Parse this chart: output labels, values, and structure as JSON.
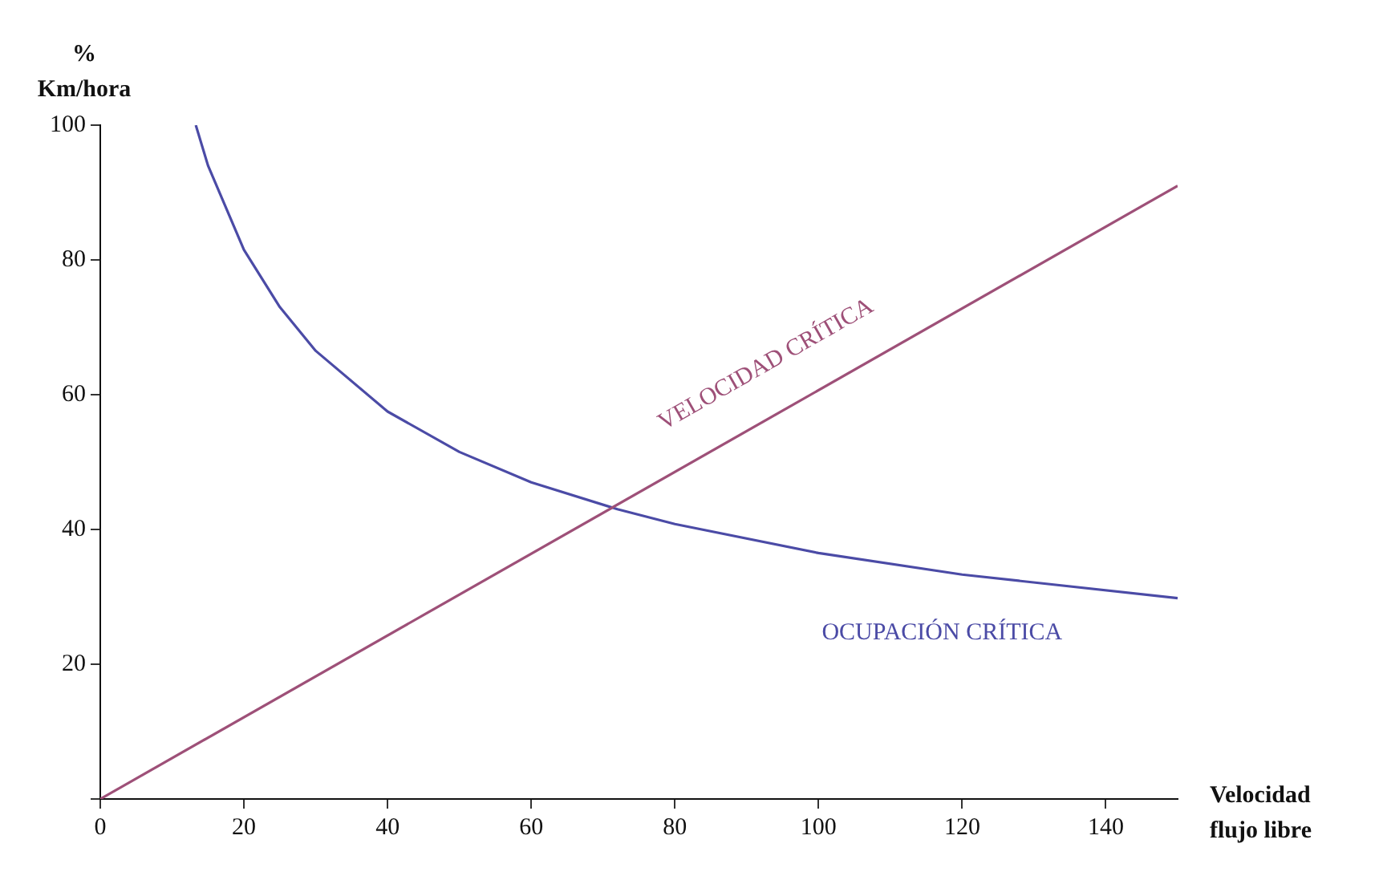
{
  "chart_data": {
    "type": "line",
    "ylabel": "%\nKm/hora",
    "xlabel": "Velocidad\nflujo libre",
    "series": [
      {
        "name": "VELOCIDAD CRÍTICA",
        "color": "#9e5078",
        "x": [
          0,
          150
        ],
        "values": [
          0,
          91
        ]
      },
      {
        "name": "OCUPACIÓN CRÍTICA",
        "color": "#4b4ba6",
        "x": [
          13.3,
          15,
          20,
          25,
          30,
          40,
          50,
          60,
          72,
          80,
          100,
          120,
          150
        ],
        "values": [
          100,
          94,
          81.5,
          73,
          66.5,
          57.5,
          51.5,
          47,
          43,
          40.8,
          36.5,
          33.3,
          29.8
        ]
      }
    ],
    "xlim": [
      0,
      150
    ],
    "xticks": [
      0,
      20,
      40,
      60,
      80,
      100,
      120,
      140
    ],
    "ylim": [
      0,
      100
    ],
    "yticks": [
      {
        "value": 0,
        "label": null
      },
      20,
      40,
      60,
      80,
      100
    ],
    "grid": false,
    "legend": false,
    "marker": "none",
    "line_style": "solid"
  }
}
